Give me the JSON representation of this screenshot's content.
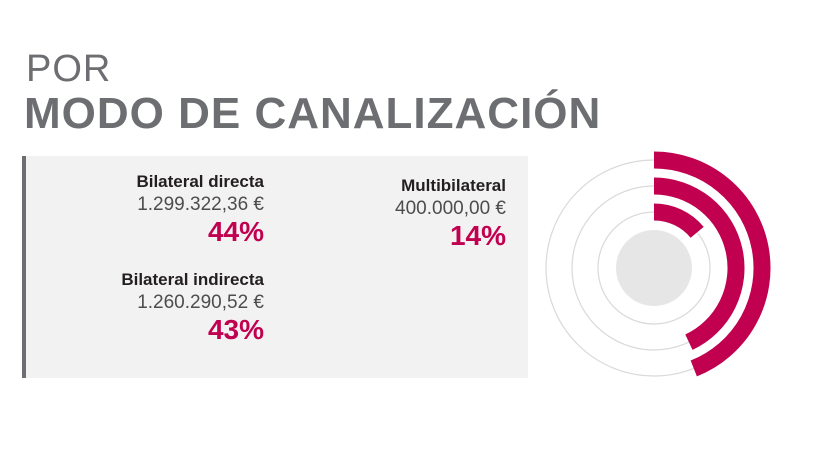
{
  "header": {
    "prefix": "POR",
    "title": "MODO DE CANALIZACIÓN"
  },
  "colors": {
    "accent": "#c10050",
    "title_gray": "#6d6e71",
    "panel_bg": "#f2f2f3",
    "ring_track": "#d9d9d9",
    "center_fill": "#e6e6e7"
  },
  "chart_data": {
    "type": "radial_bar",
    "series": [
      {
        "name": "Bilateral directa",
        "amount": "1.299.322,36 €",
        "percent_label": "44%",
        "value": 44
      },
      {
        "name": "Bilateral indirecta",
        "amount": "1.260.290,52 €",
        "percent_label": "43%",
        "value": 43
      },
      {
        "name": "Multibilateral",
        "amount": "400.000,00 €",
        "percent_label": "14%",
        "value": 14
      }
    ]
  }
}
